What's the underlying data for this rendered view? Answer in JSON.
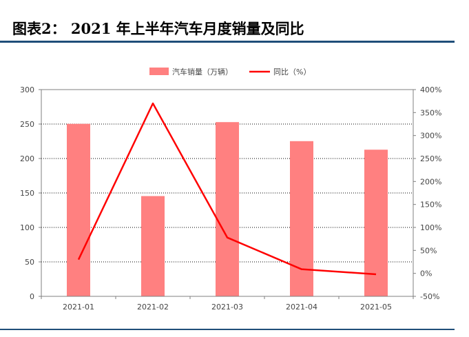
{
  "figure": {
    "title": "图表2：  2021 年上半年汽车月度销量及同比"
  },
  "chart_data": {
    "type": "bar",
    "categories": [
      "2021-01",
      "2021-02",
      "2021-03",
      "2021-04",
      "2021-05"
    ],
    "series": [
      {
        "name": "汽车销量（万辆）",
        "type": "bar",
        "axis": "left",
        "values": [
          250.3,
          145.5,
          252.8,
          225.2,
          212.8
        ]
      },
      {
        "name": "同比（%）",
        "type": "line",
        "axis": "right",
        "values": [
          30,
          370,
          78,
          9,
          -2
        ]
      }
    ],
    "y_left": {
      "ylim": [
        0,
        300
      ],
      "ticks": [
        "0",
        "50",
        "100",
        "150",
        "200",
        "250",
        "300"
      ]
    },
    "y_right": {
      "ylim": [
        -50,
        400
      ],
      "ticks": [
        "-50%",
        "0%",
        "50%",
        "100%",
        "150%",
        "200%",
        "250%",
        "300%",
        "350%",
        "400%"
      ]
    },
    "grid": true,
    "legend_position": "top",
    "colors": {
      "bar": "#ff8080",
      "line": "#ff0000"
    }
  }
}
